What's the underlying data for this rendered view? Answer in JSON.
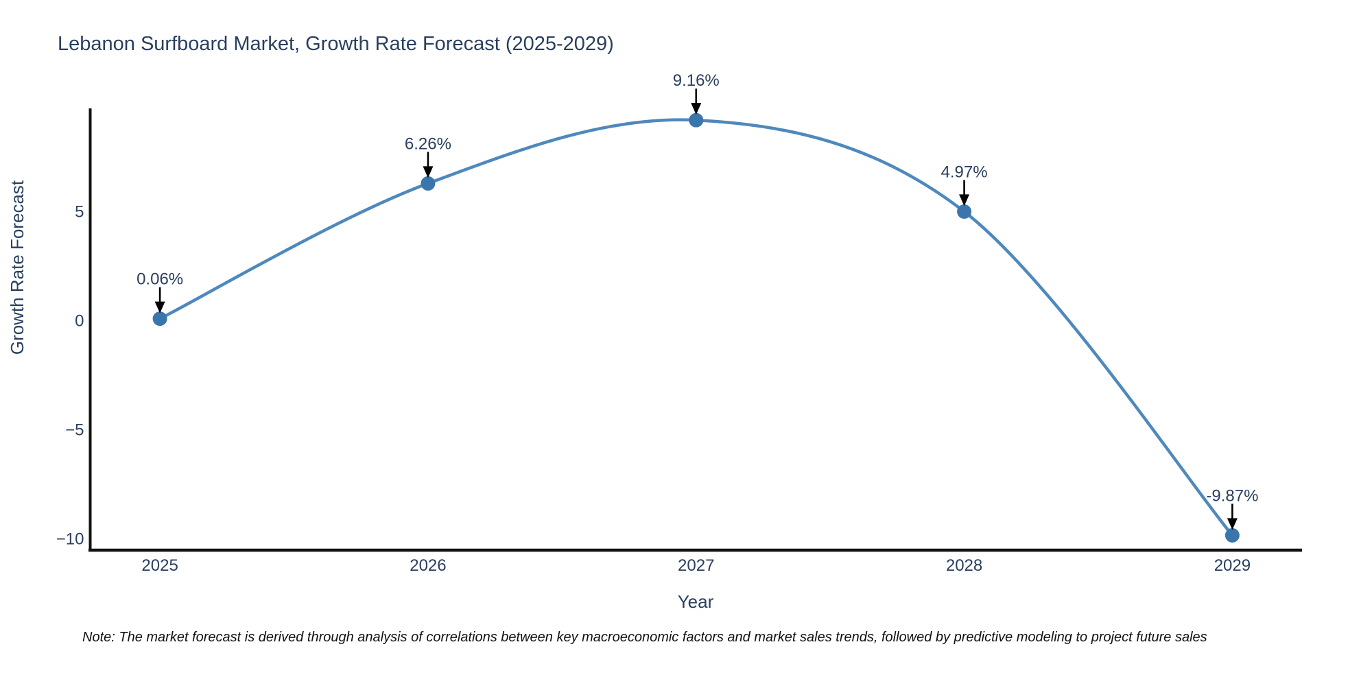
{
  "header": {
    "title": "Lebanon Surfboard Market, Growth Rate Forecast (2025-2029)"
  },
  "footer": {
    "note": "Note: The market forecast is derived through analysis of correlations between key macroeconomic factors and market sales trends, followed by predictive modeling to project future sales"
  },
  "colors": {
    "title_text": "#2a3f5f",
    "axis_text": "#2a3f5f",
    "axis_line": "#111111",
    "line": "#4e89bd",
    "marker": "#3a76ab",
    "annotation_text": "#2a3f5f",
    "annotation_arrow": "#000000",
    "background": "#ffffff"
  },
  "chart_data": {
    "type": "line",
    "line_shape": "spline",
    "title": "Lebanon Surfboard Market, Growth Rate Forecast (2025-2029)",
    "xlabel": "Year",
    "ylabel": "Growth Rate Forecast",
    "x": [
      2025,
      2026,
      2027,
      2028,
      2029
    ],
    "x_tick_labels": [
      "2025",
      "2026",
      "2027",
      "2028",
      "2029"
    ],
    "values": [
      0.06,
      6.26,
      9.16,
      4.97,
      -9.87
    ],
    "point_labels": [
      "0.06%",
      "6.26%",
      "9.16%",
      "4.97%",
      "-9.87%"
    ],
    "yticks": [
      5,
      0,
      -5,
      -10
    ],
    "ytick_labels": [
      "5",
      "0",
      "−5",
      "−10"
    ],
    "ylim": [
      -10.55,
      9.7
    ],
    "xlim": [
      2024.74,
      2029.26
    ],
    "grid": false,
    "legend": "none",
    "annotation_style": "label-above-with-down-arrow"
  }
}
